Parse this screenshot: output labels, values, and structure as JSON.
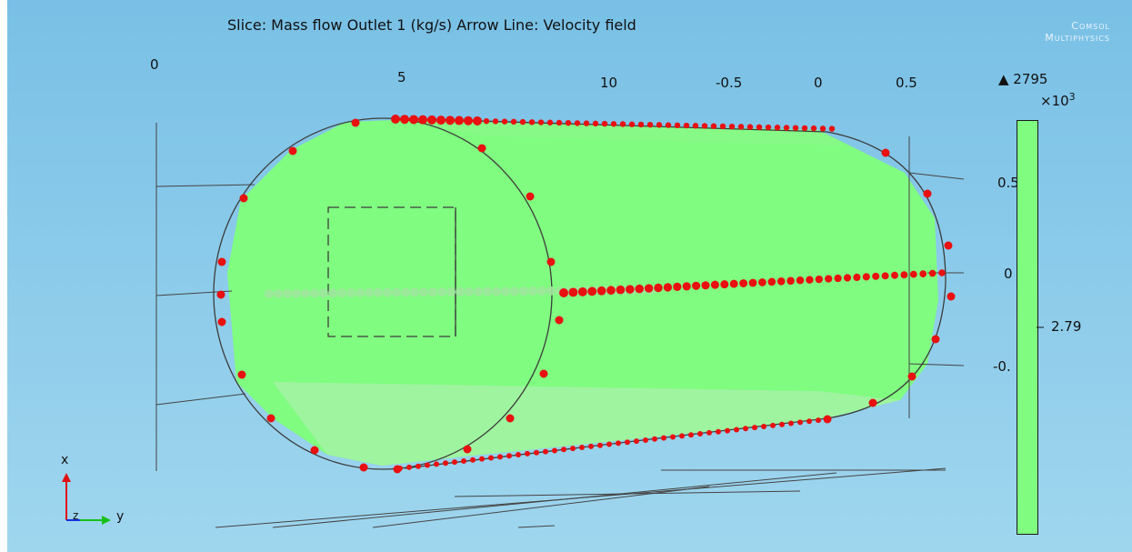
{
  "title": "Slice: Mass flow Outlet 1 (kg/s)  Arrow Line: Velocity field",
  "brand": {
    "line1": "Comsol",
    "line2": "Multiphysics"
  },
  "top_axis_ticks": [
    "0",
    "5",
    "10",
    "-0.5",
    "0",
    "0.5"
  ],
  "right_axis_ticks": [
    "0.5",
    "0",
    "-0."
  ],
  "colorbar": {
    "max_label": "▲ 2795",
    "scale_base": "×10",
    "scale_exp": "3",
    "value_label": "2.79",
    "fill_color": "#80fc80"
  },
  "axes_triad": {
    "x_label": "x",
    "y_label": "y",
    "z_label": "z"
  },
  "colors": {
    "background": "#87c9e8",
    "slice": "#80fc80",
    "arrows": "#e81010",
    "outline": "#3c3c3c"
  }
}
